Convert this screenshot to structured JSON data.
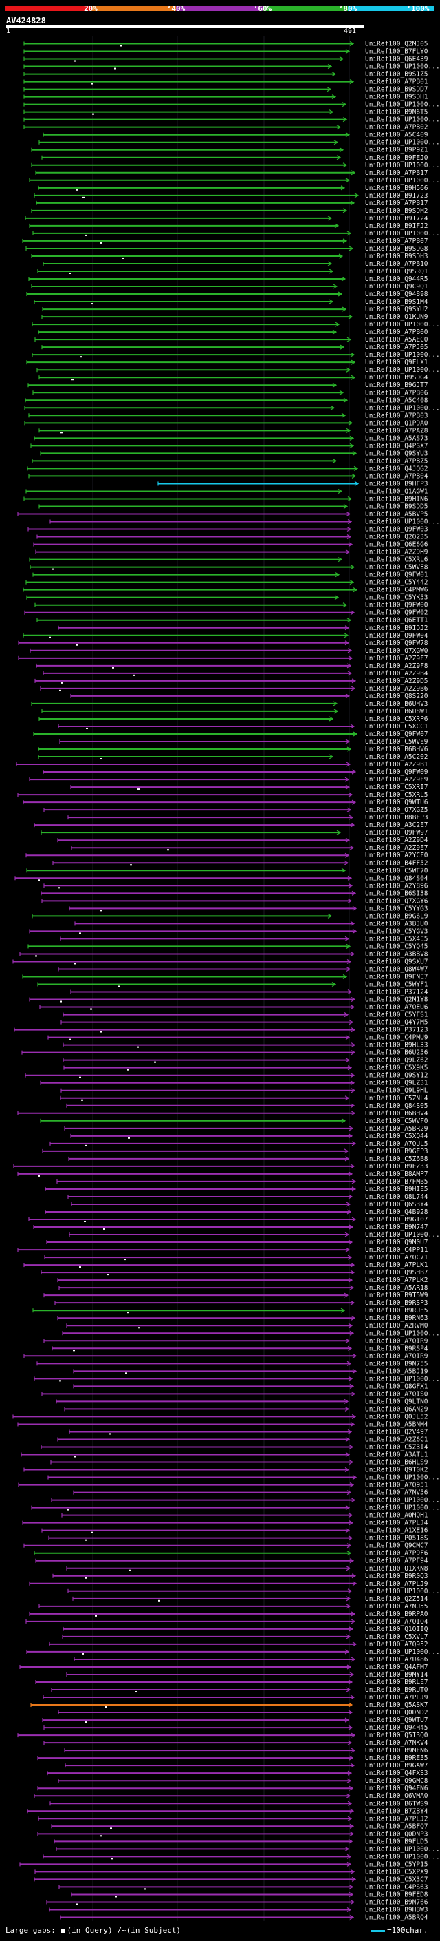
{
  "header": {
    "pct_labels": [
      "20%",
      "‘40%",
      "‘60%",
      "‘80%",
      "‘100%"
    ],
    "colors": {
      "red": "#e8161a",
      "orange": "#e8781a",
      "purple": "#9a2eb0",
      "green": "#2ab22a",
      "cyan": "#17c7e8"
    },
    "query_id": "AV424828",
    "query_start": "1",
    "query_end": "491"
  },
  "hits": [
    {
      "label": "UniRef100_Q2MJ05",
      "color": "green"
    },
    {
      "label": "UniRef100_B7FLY0",
      "color": "green"
    },
    {
      "label": "UniRef100_Q6E439",
      "color": "green"
    },
    {
      "label": "UniRef100_UP1000...",
      "color": "green"
    },
    {
      "label": "UniRef100_B9S1Z5",
      "color": "green"
    },
    {
      "label": "UniRef100_A7PB01",
      "color": "green"
    },
    {
      "label": "UniRef100_B9SDD7",
      "color": "green"
    },
    {
      "label": "UniRef100_B9SDH1",
      "color": "green"
    },
    {
      "label": "UniRef100_UP1000...",
      "color": "green"
    },
    {
      "label": "UniRef100_B9N6T5",
      "color": "green"
    },
    {
      "label": "UniRef100_UP1000...",
      "color": "green"
    },
    {
      "label": "UniRef100_A7PB02",
      "color": "green"
    },
    {
      "label": "UniRef100_A5C409",
      "color": "green"
    },
    {
      "label": "UniRef100_UP1000...",
      "color": "green"
    },
    {
      "label": "UniRef100_B9P9Z1",
      "color": "green"
    },
    {
      "label": "UniRef100_B9FEJ0",
      "color": "green"
    },
    {
      "label": "UniRef100_UP1000...",
      "color": "green"
    },
    {
      "label": "UniRef100_A7PB17",
      "color": "green"
    },
    {
      "label": "UniRef100_UP1000...",
      "color": "green"
    },
    {
      "label": "UniRef100_B9H566",
      "color": "green"
    },
    {
      "label": "UniRef100_B9I723",
      "color": "green"
    },
    {
      "label": "UniRef100_A7PB17",
      "color": "green"
    },
    {
      "label": "UniRef100_B9SDH2",
      "color": "green"
    },
    {
      "label": "UniRef100_B9I724",
      "color": "green"
    },
    {
      "label": "UniRef100_B9IFJ2",
      "color": "green"
    },
    {
      "label": "UniRef100_UP1000...",
      "color": "green"
    },
    {
      "label": "UniRef100_A7PB07",
      "color": "green"
    },
    {
      "label": "UniRef100_B9SDG8",
      "color": "green"
    },
    {
      "label": "UniRef100_B9SDH3",
      "color": "green"
    },
    {
      "label": "UniRef100_A7PB10",
      "color": "green"
    },
    {
      "label": "UniRef100_Q9SRQ1",
      "color": "green"
    },
    {
      "label": "UniRef100_Q944R5",
      "color": "green"
    },
    {
      "label": "UniRef100_Q9C9Q1",
      "color": "green"
    },
    {
      "label": "UniRef100_Q94898",
      "color": "green"
    },
    {
      "label": "UniRef100_B9S1M4",
      "color": "green"
    },
    {
      "label": "UniRef100_Q9SYU2",
      "color": "green"
    },
    {
      "label": "UniRef100_Q1KUN9",
      "color": "green"
    },
    {
      "label": "UniRef100_UP1000...",
      "color": "green"
    },
    {
      "label": "UniRef100_A7PB00",
      "color": "green"
    },
    {
      "label": "UniRef100_A5AEC0",
      "color": "green"
    },
    {
      "label": "UniRef100_A7PJ05",
      "color": "green"
    },
    {
      "label": "UniRef100_UP1000...",
      "color": "green"
    },
    {
      "label": "UniRef100_Q9FLX1",
      "color": "green"
    },
    {
      "label": "UniRef100_UP1000...",
      "color": "green"
    },
    {
      "label": "UniRef100_B9SDG4",
      "color": "green"
    },
    {
      "label": "UniRef100_B9GJT7",
      "color": "green"
    },
    {
      "label": "UniRef100_A7PB06",
      "color": "green"
    },
    {
      "label": "UniRef100_A5C408",
      "color": "green"
    },
    {
      "label": "UniRef100_UP1000...",
      "color": "green"
    },
    {
      "label": "UniRef100_A7PB03",
      "color": "green"
    },
    {
      "label": "UniRef100_Q1PDA0",
      "color": "green"
    },
    {
      "label": "UniRef100_A7PAZ8",
      "color": "green"
    },
    {
      "label": "UniRef100_A5AS73",
      "color": "green"
    },
    {
      "label": "UniRef100_Q4PSX7",
      "color": "green"
    },
    {
      "label": "UniRef100_Q9SYU3",
      "color": "green"
    },
    {
      "label": "UniRef100_A7PBZ5",
      "color": "green"
    },
    {
      "label": "UniRef100_Q4JQG2",
      "color": "green"
    },
    {
      "label": "UniRef100_A7PB04",
      "color": "green"
    },
    {
      "label": "UniRef100_B9HFP3",
      "color": "cyan"
    },
    {
      "label": "UniRef100_Q1AGW1",
      "color": "green"
    },
    {
      "label": "UniRef100_B9HIN6",
      "color": "green"
    },
    {
      "label": "UniRef100_B9SDD5",
      "color": "green"
    },
    {
      "label": "UniRef100_A5BVP5",
      "color": "purple"
    },
    {
      "label": "UniRef100_UP1000...",
      "color": "purple"
    },
    {
      "label": "UniRef100_Q9FW03",
      "color": "purple"
    },
    {
      "label": "UniRef100_Q2Q235",
      "color": "purple"
    },
    {
      "label": "UniRef100_Q6E6G6",
      "color": "purple"
    },
    {
      "label": "UniRef100_A2Z9H9",
      "color": "purple"
    },
    {
      "label": "UniRef100_C5XRL6",
      "color": "green"
    },
    {
      "label": "UniRef100_C5WVE8",
      "color": "green"
    },
    {
      "label": "UniRef100_Q9FW01",
      "color": "green"
    },
    {
      "label": "UniRef100_C5Y442",
      "color": "green"
    },
    {
      "label": "UniRef100_C4PMW6",
      "color": "green"
    },
    {
      "label": "UniRef100_C5YK53",
      "color": "green"
    },
    {
      "label": "UniRef100_Q9FW00",
      "color": "green"
    },
    {
      "label": "UniRef100_Q9FW02",
      "color": "purple"
    },
    {
      "label": "UniRef100_Q6ETT1",
      "color": "green"
    },
    {
      "label": "UniRef100_B9IDJ2",
      "color": "purple"
    },
    {
      "label": "UniRef100_Q9FW04",
      "color": "green"
    },
    {
      "label": "UniRef100_Q9FW78",
      "color": "purple"
    },
    {
      "label": "UniRef100_Q7XGW0",
      "color": "purple"
    },
    {
      "label": "UniRef100_A2Z9F7",
      "color": "purple"
    },
    {
      "label": "UniRef100_A2Z9F8",
      "color": "purple"
    },
    {
      "label": "UniRef100_A2Z9B4",
      "color": "purple"
    },
    {
      "label": "UniRef100_A2Z9D5",
      "color": "purple"
    },
    {
      "label": "UniRef100_A2Z9B6",
      "color": "purple"
    },
    {
      "label": "UniRef100_Q8S220",
      "color": "purple"
    },
    {
      "label": "UniRef100_B6UHV3",
      "color": "green"
    },
    {
      "label": "UniRef100_B6U8W1",
      "color": "green"
    },
    {
      "label": "UniRef100_C5XRP6",
      "color": "green"
    },
    {
      "label": "UniRef100_C5XCC1",
      "color": "purple"
    },
    {
      "label": "UniRef100_Q9FW07",
      "color": "green"
    },
    {
      "label": "UniRef100_C5WVE9",
      "color": "purple"
    },
    {
      "label": "UniRef100_B6BHV6",
      "color": "green"
    },
    {
      "label": "UniRef100_A5C202",
      "color": "green"
    },
    {
      "label": "UniRef100_A2Z9B1",
      "color": "purple"
    },
    {
      "label": "UniRef100_Q9FW09",
      "color": "purple"
    },
    {
      "label": "UniRef100_A2Z9F9",
      "color": "purple"
    },
    {
      "label": "UniRef100_C5XRI7",
      "color": "purple"
    },
    {
      "label": "UniRef100_C5XRL5",
      "color": "purple"
    },
    {
      "label": "UniRef100_Q9WTU6",
      "color": "purple"
    },
    {
      "label": "UniRef100_Q7XGZ5",
      "color": "purple"
    },
    {
      "label": "UniRef100_B8BFP3",
      "color": "purple"
    },
    {
      "label": "UniRef100_A3C2E7",
      "color": "purple"
    },
    {
      "label": "UniRef100_Q9FW97",
      "color": "green"
    },
    {
      "label": "UniRef100_A2Z9D4",
      "color": "purple"
    },
    {
      "label": "UniRef100_A2Z9E7",
      "color": "purple"
    },
    {
      "label": "UniRef100_A2YCF0",
      "color": "purple"
    },
    {
      "label": "UniRef100_B4FF52",
      "color": "purple"
    },
    {
      "label": "UniRef100_C5WF70",
      "color": "green"
    },
    {
      "label": "UniRef100_Q84S04",
      "color": "purple"
    },
    {
      "label": "UniRef100_A2Y896",
      "color": "purple"
    },
    {
      "label": "UniRef100_B6SI38",
      "color": "purple"
    },
    {
      "label": "UniRef100_Q7XGY6",
      "color": "purple"
    },
    {
      "label": "UniRef100_C5YYG3",
      "color": "purple"
    },
    {
      "label": "UniRef100_B9G6L9",
      "color": "green"
    },
    {
      "label": "UniRef100_A3BJU0",
      "color": "purple"
    },
    {
      "label": "UniRef100_C5YGV3",
      "color": "purple"
    },
    {
      "label": "UniRef100_C5X4E5",
      "color": "purple"
    },
    {
      "label": "UniRef100_C5YQ45",
      "color": "green"
    },
    {
      "label": "UniRef100_A3BBV8",
      "color": "purple"
    },
    {
      "label": "UniRef100_Q9SXU7",
      "color": "purple"
    },
    {
      "label": "UniRef100_Q8W4W7",
      "color": "purple"
    },
    {
      "label": "UniRef100_B9FNE7",
      "color": "green"
    },
    {
      "label": "UniRef100_C5WYF1",
      "color": "green"
    },
    {
      "label": "UniRef100_P37124",
      "color": "purple"
    },
    {
      "label": "UniRef100_Q2M1Y8",
      "color": "purple"
    },
    {
      "label": "UniRef100_A7QEU6",
      "color": "purple"
    },
    {
      "label": "UniRef100_C5YFS1",
      "color": "purple"
    },
    {
      "label": "UniRef100_Q4Y7M5",
      "color": "purple"
    },
    {
      "label": "UniRef100_P37123",
      "color": "purple"
    },
    {
      "label": "UniRef100_C4PMU9",
      "color": "purple"
    },
    {
      "label": "UniRef100_B9HL33",
      "color": "purple"
    },
    {
      "label": "UniRef100_B6U256",
      "color": "purple"
    },
    {
      "label": "UniRef100_Q9LZ62",
      "color": "purple"
    },
    {
      "label": "UniRef100_C5X9K5",
      "color": "purple"
    },
    {
      "label": "UniRef100_Q9SY12",
      "color": "purple"
    },
    {
      "label": "UniRef100_Q9LZ31",
      "color": "purple"
    },
    {
      "label": "UniRef100_Q9L9HL",
      "color": "purple"
    },
    {
      "label": "UniRef100_C5ZNL4",
      "color": "purple"
    },
    {
      "label": "UniRef100_Q84S05",
      "color": "purple"
    },
    {
      "label": "UniRef100_B6BHV4",
      "color": "purple"
    },
    {
      "label": "UniRef100_C5WVF0",
      "color": "green"
    },
    {
      "label": "UniRef100_A5BR29",
      "color": "purple"
    },
    {
      "label": "UniRef100_C5XQ44",
      "color": "purple"
    },
    {
      "label": "UniRef100_A7QUL5",
      "color": "purple"
    },
    {
      "label": "UniRef100_B9GEP3",
      "color": "purple"
    },
    {
      "label": "UniRef100_C5Z6B8",
      "color": "purple"
    },
    {
      "label": "UniRef100_B9FZ33",
      "color": "purple"
    },
    {
      "label": "UniRef100_B8AMP7",
      "color": "purple"
    },
    {
      "label": "UniRef100_B7FMB5",
      "color": "purple"
    },
    {
      "label": "UniRef100_B9HIE5",
      "color": "purple"
    },
    {
      "label": "UniRef100_Q8L744",
      "color": "purple"
    },
    {
      "label": "UniRef100_Q6S3Y4",
      "color": "purple"
    },
    {
      "label": "UniRef100_Q4B928",
      "color": "purple"
    },
    {
      "label": "UniRef100_B9GI07",
      "color": "purple"
    },
    {
      "label": "UniRef100_B9N747",
      "color": "purple"
    },
    {
      "label": "UniRef100_UP1000...",
      "color": "purple"
    },
    {
      "label": "UniRef100_Q9M0U7",
      "color": "purple"
    },
    {
      "label": "UniRef100_C4PP11",
      "color": "purple"
    },
    {
      "label": "UniRef100_A7QC71",
      "color": "purple"
    },
    {
      "label": "UniRef100_A7PLK1",
      "color": "purple"
    },
    {
      "label": "UniRef100_Q9SHB7",
      "color": "purple"
    },
    {
      "label": "UniRef100_A7PLK2",
      "color": "purple"
    },
    {
      "label": "UniRef100_A5AR18",
      "color": "purple"
    },
    {
      "label": "UniRef100_B9T5W9",
      "color": "purple"
    },
    {
      "label": "UniRef100_B9RSP3",
      "color": "purple"
    },
    {
      "label": "UniRef100_B9RUE5",
      "color": "green"
    },
    {
      "label": "UniRef100_B9RN63",
      "color": "purple"
    },
    {
      "label": "UniRef100_A2RVM0",
      "color": "purple"
    },
    {
      "label": "UniRef100_UP1000...",
      "color": "purple"
    },
    {
      "label": "UniRef100_A7QIR9",
      "color": "purple"
    },
    {
      "label": "UniRef100_B9RSP4",
      "color": "purple"
    },
    {
      "label": "UniRef100_A7QIR9",
      "color": "purple"
    },
    {
      "label": "UniRef100_B9N755",
      "color": "purple"
    },
    {
      "label": "UniRef100_A5BJ19",
      "color": "purple"
    },
    {
      "label": "UniRef100_UP1000...",
      "color": "purple"
    },
    {
      "label": "UniRef100_Q8GFX1",
      "color": "purple"
    },
    {
      "label": "UniRef100_A7QIS0",
      "color": "purple"
    },
    {
      "label": "UniRef100_Q9LTN0",
      "color": "purple"
    },
    {
      "label": "UniRef100_Q6AN29",
      "color": "purple"
    },
    {
      "label": "UniRef100_Q0JL52",
      "color": "purple"
    },
    {
      "label": "UniRef100_A5BNM4",
      "color": "purple"
    },
    {
      "label": "UniRef100_Q2V497",
      "color": "purple"
    },
    {
      "label": "UniRef100_A2Z6C1",
      "color": "purple"
    },
    {
      "label": "UniRef100_C5Z3I4",
      "color": "purple"
    },
    {
      "label": "UniRef100_A3ATL1",
      "color": "purple"
    },
    {
      "label": "UniRef100_B6HLS9",
      "color": "purple"
    },
    {
      "label": "UniRef100_Q9T0K2",
      "color": "purple"
    },
    {
      "label": "UniRef100_UP1000...",
      "color": "purple"
    },
    {
      "label": "UniRef100_A7Q951",
      "color": "purple"
    },
    {
      "label": "UniRef100_A7NV56",
      "color": "purple"
    },
    {
      "label": "UniRef100_UP1000...",
      "color": "purple"
    },
    {
      "label": "UniRef100_UP1000...",
      "color": "purple"
    },
    {
      "label": "UniRef100_A0MQH1",
      "color": "purple"
    },
    {
      "label": "UniRef100_A7PLJ4",
      "color": "purple"
    },
    {
      "label": "UniRef100_A1XE16",
      "color": "purple"
    },
    {
      "label": "UniRef100_P0518S",
      "color": "purple"
    },
    {
      "label": "UniRef100_Q9CMC7",
      "color": "purple"
    },
    {
      "label": "UniRef100_A7P9F6",
      "color": "green"
    },
    {
      "label": "UniRef100_A7PF94",
      "color": "purple"
    },
    {
      "label": "UniRef100_Q1XKN8",
      "color": "purple"
    },
    {
      "label": "UniRef100_B9R0Q3",
      "color": "purple"
    },
    {
      "label": "UniRef100_A7PLJ9",
      "color": "purple"
    },
    {
      "label": "UniRef100_UP1000...",
      "color": "purple"
    },
    {
      "label": "UniRef100_Q2Z514",
      "color": "purple"
    },
    {
      "label": "UniRef100_A7NU55",
      "color": "purple"
    },
    {
      "label": "UniRef100_B9RPA0",
      "color": "purple"
    },
    {
      "label": "UniRef100_A7QIQ4",
      "color": "purple"
    },
    {
      "label": "UniRef100_Q1QIIQ",
      "color": "purple"
    },
    {
      "label": "UniRef100_C5XVL7",
      "color": "purple"
    },
    {
      "label": "UniRef100_A7Q952",
      "color": "purple"
    },
    {
      "label": "UniRef100_UP1000...",
      "color": "purple"
    },
    {
      "label": "UniRef100_A7U486",
      "color": "purple"
    },
    {
      "label": "UniRef100_Q4AFM7",
      "color": "purple"
    },
    {
      "label": "UniRef100_B9MY14",
      "color": "purple"
    },
    {
      "label": "UniRef100_B9RLE7",
      "color": "purple"
    },
    {
      "label": "UniRef100_B9RUT0",
      "color": "purple"
    },
    {
      "label": "UniRef100_A7PLJ9",
      "color": "purple"
    },
    {
      "label": "UniRef100_Q5ASK7",
      "color": "orange"
    },
    {
      "label": "UniRef100_Q0DND2",
      "color": "purple"
    },
    {
      "label": "UniRef100_Q9WTU7",
      "color": "purple"
    },
    {
      "label": "UniRef100_Q94H45",
      "color": "purple"
    },
    {
      "label": "UniRef100_Q5I3Q0",
      "color": "purple"
    },
    {
      "label": "UniRef100_A7NKV4",
      "color": "purple"
    },
    {
      "label": "UniRef100_B9MFN6",
      "color": "purple"
    },
    {
      "label": "UniRef100_B9RE35",
      "color": "purple"
    },
    {
      "label": "UniRef100_B9GAW7",
      "color": "purple"
    },
    {
      "label": "UniRef100_Q4FXS3",
      "color": "purple"
    },
    {
      "label": "UniRef100_Q9GMC8",
      "color": "purple"
    },
    {
      "label": "UniRef100_Q94FN6",
      "color": "purple"
    },
    {
      "label": "UniRef100_Q6VMA0",
      "color": "purple"
    },
    {
      "label": "UniRef100_B6TWS9",
      "color": "purple"
    },
    {
      "label": "UniRef100_B7ZBY4",
      "color": "purple"
    },
    {
      "label": "UniRef100_A7PLJ2",
      "color": "purple"
    },
    {
      "label": "UniRef100_A5BFQ7",
      "color": "purple"
    },
    {
      "label": "UniRef100_Q0DNP3",
      "color": "purple"
    },
    {
      "label": "UniRef100_B9FLD5",
      "color": "purple"
    },
    {
      "label": "UniRef100_UP1000...",
      "color": "purple"
    },
    {
      "label": "UniRef100_UP1000...",
      "color": "purple"
    },
    {
      "label": "UniRef100_C5YP15",
      "color": "purple"
    },
    {
      "label": "UniRef100_C5XPX9",
      "color": "purple"
    },
    {
      "label": "UniRef100_C5X3C7",
      "color": "purple"
    },
    {
      "label": "UniRef100_C4PS63",
      "color": "purple"
    },
    {
      "label": "UniRef100_B9FED8",
      "color": "purple"
    },
    {
      "label": "UniRef100_B9N766",
      "color": "purple"
    },
    {
      "label": "UniRef100_B9HBW3",
      "color": "purple"
    },
    {
      "label": "UniRef100_A5BRQ4",
      "color": "purple"
    }
  ],
  "footer": {
    "gaps_label": "Large gaps:",
    "gap_query": "(in Query)",
    "gap_subject": "/~(in Subject)",
    "scale_label": "=100char."
  }
}
